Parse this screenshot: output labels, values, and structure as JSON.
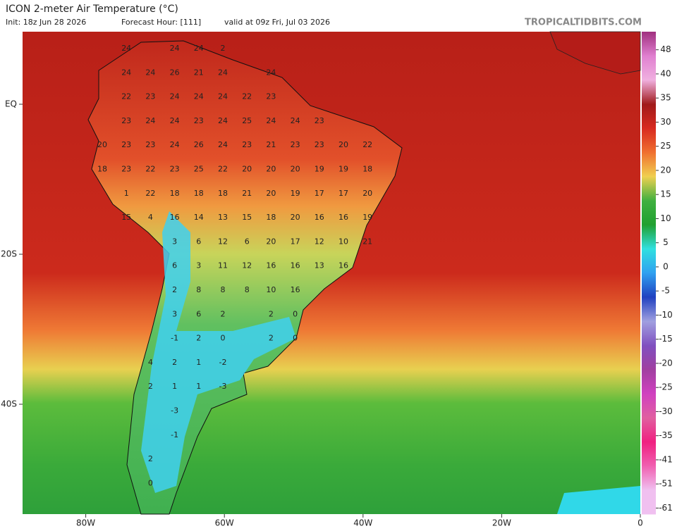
{
  "header": {
    "title": "ICON 2-meter Air Temperature (°C)",
    "init": "Init: 18z Jun 28 2026",
    "forecast_hour": "Forecast Hour: [111]",
    "valid": "valid at 09z Fri, Jul 03 2026",
    "brand": "TROPICALTIDBITS.COM"
  },
  "map": {
    "lon_ticks": [
      {
        "value": -80,
        "label": "80W"
      },
      {
        "value": -60,
        "label": "60W"
      },
      {
        "value": -40,
        "label": "40W"
      },
      {
        "value": -20,
        "label": "20W"
      },
      0
    ],
    "lat_ticks": [
      {
        "value": 0,
        "label": "EQ"
      },
      {
        "value": -20,
        "label": "20S"
      },
      {
        "value": -40,
        "label": "40S"
      }
    ],
    "temperature_labels": [
      [
        null,
        24,
        null,
        24,
        24,
        2
      ],
      [
        null,
        24,
        24,
        26,
        21,
        24,
        null,
        24
      ],
      [
        null,
        22,
        23,
        24,
        24,
        24,
        22,
        23
      ],
      [
        null,
        23,
        24,
        24,
        23,
        24,
        25,
        24,
        24,
        23
      ],
      [
        20,
        23,
        23,
        24,
        26,
        24,
        23,
        21,
        23,
        23,
        20,
        22
      ],
      [
        18,
        23,
        22,
        23,
        25,
        22,
        20,
        20,
        20,
        19,
        19,
        18
      ],
      [
        null,
        1,
        22,
        18,
        18,
        18,
        21,
        20,
        19,
        17,
        17,
        20
      ],
      [
        null,
        15,
        4,
        16,
        14,
        13,
        15,
        18,
        20,
        16,
        16,
        19
      ],
      [
        null,
        null,
        null,
        3,
        6,
        12,
        6,
        20,
        17,
        12,
        10,
        21
      ],
      [
        null,
        null,
        null,
        6,
        3,
        11,
        12,
        16,
        16,
        13,
        16
      ],
      [
        null,
        null,
        null,
        2,
        8,
        8,
        8,
        10,
        16
      ],
      [
        null,
        null,
        null,
        3,
        6,
        2,
        null,
        2,
        0
      ],
      [
        null,
        null,
        null,
        -1,
        2,
        0,
        null,
        2,
        0
      ],
      [
        null,
        null,
        4,
        2,
        1,
        -2
      ],
      [
        null,
        null,
        2,
        1,
        1,
        -3
      ],
      [
        null,
        null,
        null,
        -3
      ],
      [
        null,
        null,
        null,
        -1
      ],
      [
        null,
        null,
        2
      ],
      [
        null,
        null,
        0
      ]
    ]
  },
  "colorbar": {
    "ticks": [
      48,
      40,
      35,
      30,
      25,
      20,
      15,
      10,
      5,
      0,
      -5,
      -10,
      -15,
      -20,
      -25,
      -30,
      -35,
      -41,
      -51,
      -61
    ],
    "colors": [
      "#a0307f",
      "#e080d0",
      "#f0b0e0",
      "#a01a1a",
      "#d82a20",
      "#f07030",
      "#f0d050",
      "#40b040",
      "#20a030",
      "#30e0e0",
      "#30a0f0",
      "#2040c0",
      "#a0a0e0",
      "#8050c0",
      "#a040a0",
      "#d040c0",
      "#e060a0",
      "#f02080",
      "#f060b0",
      "#f0c0f0"
    ]
  }
}
